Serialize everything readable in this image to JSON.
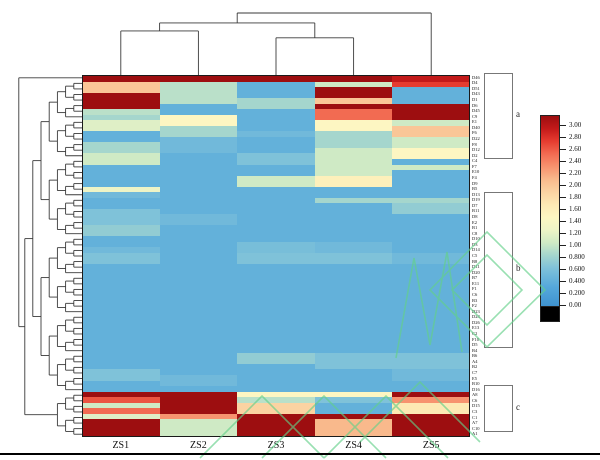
{
  "figure": {
    "type_note": "clustered heatmap with row/column dendrograms"
  },
  "chart_data": {
    "type": "heatmap",
    "title": "",
    "xlabel": "",
    "ylabel": "",
    "columns": [
      "ZS1",
      "ZS2",
      "ZS3",
      "ZS4",
      "ZS5"
    ],
    "rows": [
      "D46",
      "D4",
      "D51",
      "D43",
      "D1",
      "D6",
      "D45",
      "C9",
      "E1",
      "D40",
      "F6",
      "D22",
      "F8",
      "D12",
      "D2",
      "C4",
      "F7",
      "E10",
      "F4",
      "D9",
      "B5",
      "D13",
      "D19",
      "D7",
      "B11",
      "D8",
      "E2",
      "B1",
      "C8",
      "D10",
      "D3",
      "D14",
      "C5",
      "B8",
      "D11",
      "D20",
      "B7",
      "E11",
      "F1",
      "C6",
      "B3",
      "F2",
      "D23",
      "D24",
      "D26",
      "E13",
      "C2",
      "F10",
      "D5",
      "B4",
      "B6",
      "A4",
      "B2",
      "C7",
      "E5",
      "B10",
      "D16",
      "A8",
      "C6",
      "D15",
      "C3",
      "C1",
      "A7",
      "C10",
      "A1"
    ],
    "values": [
      [
        3.0,
        3.0,
        3.0,
        3.0,
        2.8
      ],
      [
        1.9,
        0.9,
        0.4,
        1.0,
        2.6
      ],
      [
        1.9,
        0.9,
        0.4,
        3.0,
        0.4
      ],
      [
        3.0,
        0.9,
        0.4,
        3.0,
        0.4
      ],
      [
        3.0,
        0.9,
        0.8,
        1.9,
        0.4
      ],
      [
        3.0,
        0.4,
        0.8,
        3.0,
        3.0
      ],
      [
        0.9,
        0.4,
        0.4,
        2.4,
        3.0
      ],
      [
        0.8,
        1.4,
        0.4,
        2.4,
        3.0
      ],
      [
        1.1,
        1.4,
        0.4,
        1.4,
        1.0
      ],
      [
        1.1,
        0.8,
        0.4,
        1.4,
        1.9
      ],
      [
        0.4,
        0.8,
        0.5,
        0.8,
        1.9
      ],
      [
        0.4,
        0.5,
        0.4,
        0.8,
        1.0
      ],
      [
        0.8,
        0.5,
        0.4,
        0.8,
        1.0
      ],
      [
        0.8,
        0.5,
        0.4,
        1.0,
        1.4
      ],
      [
        1.0,
        0.4,
        0.6,
        1.0,
        1.4
      ],
      [
        1.0,
        0.4,
        0.6,
        1.0,
        0.4
      ],
      [
        0.4,
        0.4,
        0.4,
        1.0,
        1.0
      ],
      [
        0.4,
        0.4,
        0.4,
        1.0,
        0.4
      ],
      [
        0.4,
        0.4,
        1.0,
        1.5,
        0.4
      ],
      [
        0.4,
        0.4,
        1.0,
        1.5,
        0.4
      ],
      [
        1.2,
        0.4,
        0.4,
        0.4,
        0.4
      ],
      [
        0.5,
        0.4,
        0.4,
        0.4,
        0.4
      ],
      [
        0.4,
        0.4,
        0.4,
        0.8,
        0.8
      ],
      [
        0.4,
        0.4,
        0.4,
        0.4,
        0.7
      ],
      [
        0.6,
        0.4,
        0.4,
        0.4,
        0.7
      ],
      [
        0.6,
        0.5,
        0.4,
        0.4,
        0.4
      ],
      [
        0.6,
        0.5,
        0.4,
        0.4,
        0.4
      ],
      [
        0.7,
        0.4,
        0.4,
        0.4,
        0.4
      ],
      [
        0.7,
        0.4,
        0.4,
        0.4,
        0.4
      ],
      [
        0.4,
        0.4,
        0.4,
        0.4,
        0.4
      ],
      [
        0.4,
        0.4,
        0.55,
        0.5,
        0.4
      ],
      [
        0.5,
        0.4,
        0.55,
        0.5,
        0.4
      ],
      [
        0.6,
        0.4,
        0.6,
        0.6,
        0.5
      ],
      [
        0.6,
        0.4,
        0.6,
        0.6,
        0.5
      ],
      [
        0.4,
        0.4,
        0.4,
        0.4,
        0.4
      ],
      [
        0.4,
        0.4,
        0.4,
        0.4,
        0.4
      ],
      [
        0.4,
        0.4,
        0.4,
        0.4,
        0.4
      ],
      [
        0.4,
        0.4,
        0.4,
        0.4,
        0.4
      ],
      [
        0.4,
        0.4,
        0.4,
        0.4,
        0.4
      ],
      [
        0.4,
        0.4,
        0.4,
        0.4,
        0.4
      ],
      [
        0.4,
        0.4,
        0.4,
        0.4,
        0.4
      ],
      [
        0.4,
        0.4,
        0.4,
        0.4,
        0.4
      ],
      [
        0.4,
        0.4,
        0.4,
        0.4,
        0.4
      ],
      [
        0.4,
        0.4,
        0.4,
        0.4,
        0.4
      ],
      [
        0.4,
        0.4,
        0.4,
        0.4,
        0.4
      ],
      [
        0.4,
        0.4,
        0.4,
        0.4,
        0.4
      ],
      [
        0.4,
        0.4,
        0.4,
        0.4,
        0.4
      ],
      [
        0.4,
        0.4,
        0.4,
        0.4,
        0.4
      ],
      [
        0.4,
        0.4,
        0.4,
        0.4,
        0.4
      ],
      [
        0.4,
        0.4,
        0.4,
        0.4,
        0.4
      ],
      [
        0.4,
        0.4,
        0.7,
        0.6,
        0.6
      ],
      [
        0.4,
        0.4,
        0.7,
        0.6,
        0.6
      ],
      [
        0.4,
        0.4,
        0.4,
        0.6,
        0.6
      ],
      [
        0.6,
        0.4,
        0.4,
        0.4,
        0.5
      ],
      [
        0.6,
        0.5,
        0.4,
        0.4,
        0.5
      ],
      [
        0.4,
        0.5,
        0.4,
        0.4,
        0.4
      ],
      [
        0.4,
        0.4,
        0.4,
        0.4,
        0.4
      ],
      [
        3.0,
        3.0,
        1.4,
        1.4,
        3.0
      ],
      [
        2.5,
        3.0,
        0.9,
        0.6,
        2.2
      ],
      [
        1.0,
        3.0,
        1.8,
        0.4,
        1.6
      ],
      [
        2.4,
        3.0,
        1.8,
        0.4,
        1.6
      ],
      [
        1.1,
        2.2,
        3.0,
        3.0,
        3.0
      ],
      [
        3.0,
        1.0,
        3.0,
        2.0,
        3.0
      ],
      [
        3.0,
        1.0,
        3.0,
        2.0,
        3.0
      ],
      [
        3.0,
        1.0,
        3.0,
        2.0,
        3.0
      ]
    ],
    "value_range": [
      0.0,
      3.0
    ],
    "legend_position": "right",
    "col_dendrogram": {
      "merges": [
        {
          "a": [
            "ZS1"
          ],
          "b": [
            "ZS2"
          ],
          "h": 0.71
        },
        {
          "a": [
            "ZS3"
          ],
          "b": [
            "ZS4"
          ],
          "h": 0.6
        },
        {
          "a": [
            "ZS1",
            "ZS2"
          ],
          "b": [
            "ZS3",
            "ZS4"
          ],
          "h": 0.84
        },
        {
          "a": [
            "ZS1",
            "ZS2",
            "ZS3",
            "ZS4"
          ],
          "b": [
            "ZS5"
          ],
          "h": 1.0
        }
      ]
    },
    "row_dendrogram": {
      "note": "row 1 joins at root; rows 2-57 form one large cluster; rows 58-65 form bottom cluster"
    }
  },
  "clusters": [
    {
      "label": "a",
      "row_start": 1,
      "row_end": 15
    },
    {
      "label": "b",
      "row_start": 22,
      "row_end": 49
    },
    {
      "label": "c",
      "row_start": 56,
      "row_end": 64
    }
  ],
  "legend": {
    "ticks": [
      "3.00",
      "2.80",
      "2.60",
      "2.40",
      "2.20",
      "2.00",
      "1.80",
      "1.60",
      "1.40",
      "1.20",
      "1.00",
      "0.800",
      "0.600",
      "0.400",
      "0.200",
      "0.00"
    ],
    "below_scale_color_name": "black"
  },
  "colors": {
    "dendrogram_line": "#3a3a3a",
    "bracket_line": "#777777",
    "heatmap_border": "#1a1a1a",
    "watermark_green": "#63d089",
    "legend_black": "#000000",
    "colormap_stops": [
      [
        0.0,
        "#3f93d0"
      ],
      [
        0.3,
        "#55a8db"
      ],
      [
        0.6,
        "#7fc2d9"
      ],
      [
        0.8,
        "#a5d6cd"
      ],
      [
        1.0,
        "#cfeac5"
      ],
      [
        1.2,
        "#eef4c6"
      ],
      [
        1.4,
        "#fdf6c2"
      ],
      [
        1.6,
        "#fde9b4"
      ],
      [
        1.8,
        "#fbd3a2"
      ],
      [
        2.0,
        "#f9b98c"
      ],
      [
        2.2,
        "#f7936f"
      ],
      [
        2.4,
        "#f26b52"
      ],
      [
        2.6,
        "#e63c30"
      ],
      [
        2.8,
        "#c31a1a"
      ],
      [
        3.0,
        "#9d0e10"
      ]
    ]
  }
}
